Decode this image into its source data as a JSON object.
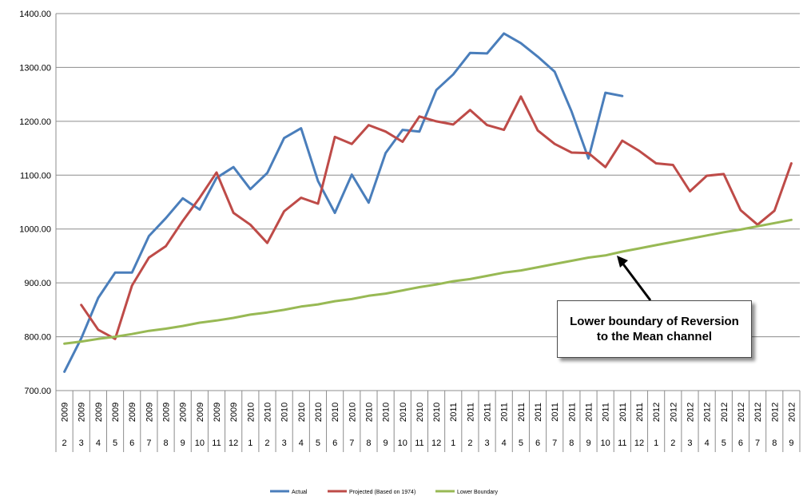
{
  "chart_data": {
    "type": "line",
    "title": "",
    "xlabel": "",
    "ylabel": "",
    "ylim": [
      700,
      1400
    ],
    "yticks": [
      "700.00",
      "800.00",
      "900.00",
      "1000.00",
      "1100.00",
      "1200.00",
      "1300.00",
      "1400.00"
    ],
    "grid": "horizontal",
    "legend_position": "bottom",
    "x_years": [
      "2009",
      "2009",
      "2009",
      "2009",
      "2009",
      "2009",
      "2009",
      "2009",
      "2009",
      "2009",
      "2009",
      "2010",
      "2010",
      "2010",
      "2010",
      "2010",
      "2010",
      "2010",
      "2010",
      "2010",
      "2010",
      "2010",
      "2010",
      "2011",
      "2011",
      "2011",
      "2011",
      "2011",
      "2011",
      "2011",
      "2011",
      "2011",
      "2011",
      "2011",
      "2011",
      "2012",
      "2012",
      "2012",
      "2012",
      "2012",
      "2012",
      "2012",
      "2012",
      "2012"
    ],
    "x_months": [
      "2",
      "3",
      "4",
      "5",
      "6",
      "7",
      "8",
      "9",
      "10",
      "11",
      "12",
      "1",
      "2",
      "3",
      "4",
      "5",
      "6",
      "7",
      "8",
      "9",
      "10",
      "11",
      "12",
      "1",
      "2",
      "3",
      "4",
      "5",
      "6",
      "7",
      "8",
      "9",
      "10",
      "11",
      "12",
      "1",
      "2",
      "3",
      "4",
      "5",
      "6",
      "7",
      "8",
      "9"
    ],
    "series": [
      {
        "name": "Actual",
        "color": "#4a7ebb",
        "values": [
          735,
          797,
          872,
          919,
          919,
          987,
          1020,
          1057,
          1036,
          1095,
          1115,
          1074,
          1104,
          1169,
          1187,
          1089,
          1030,
          1101,
          1049,
          1141,
          1184,
          1181,
          1258,
          1287,
          1327,
          1326,
          1363,
          1345,
          1320,
          1292,
          1218,
          1131,
          1253,
          1247,
          null,
          null,
          null,
          null,
          null,
          null,
          null,
          null,
          null,
          null
        ]
      },
      {
        "name": "Projected (Based on 1974)",
        "color": "#be4b48",
        "values": [
          null,
          859,
          813,
          796,
          895,
          947,
          968,
          1015,
          1058,
          1105,
          1030,
          1008,
          974,
          1033,
          1058,
          1047,
          1171,
          1158,
          1193,
          1181,
          1162,
          1209,
          1200,
          1194,
          1221,
          1193,
          1184,
          1246,
          1183,
          1158,
          1142,
          1141,
          1115,
          1164,
          1145,
          1122,
          1119,
          1070,
          1099,
          1102,
          1035,
          1008,
          1034,
          1122
        ]
      },
      {
        "name": "Lower Boundary",
        "color": "#98b954",
        "values": [
          787,
          791,
          796,
          800,
          805,
          811,
          815,
          820,
          826,
          830,
          835,
          841,
          845,
          850,
          856,
          860,
          866,
          870,
          876,
          880,
          886,
          892,
          897,
          903,
          907,
          913,
          919,
          923,
          929,
          935,
          941,
          947,
          951,
          958,
          964,
          970,
          976,
          982,
          988,
          994,
          999,
          1005,
          1011,
          1017
        ]
      }
    ],
    "annotation": {
      "text_line1": "Lower boundary of Reversion",
      "text_line2": "to the Mean channel"
    }
  }
}
